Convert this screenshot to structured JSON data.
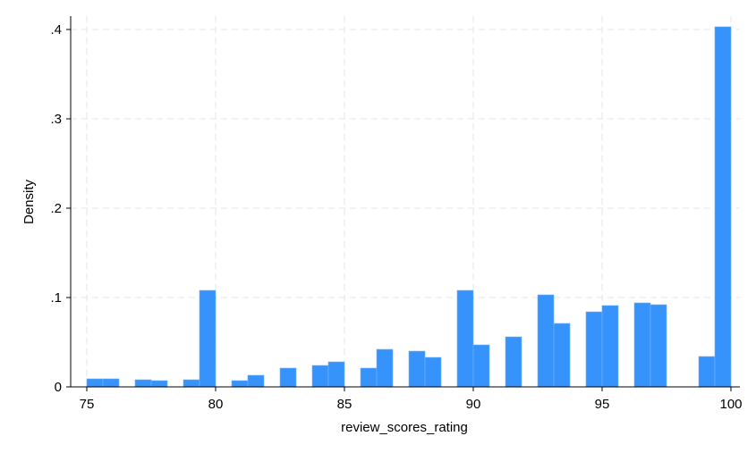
{
  "chart_data": {
    "type": "bar",
    "xlabel": "review_scores_rating",
    "ylabel": "Density",
    "xlim": [
      75,
      100
    ],
    "ylim": [
      0,
      0.4
    ],
    "x_ticks": [
      75,
      80,
      85,
      90,
      95,
      100
    ],
    "x_tick_labels": [
      "75",
      "80",
      "85",
      "90",
      "95",
      "100"
    ],
    "y_ticks": [
      0,
      0.1,
      0.2,
      0.3,
      0.4
    ],
    "y_tick_labels": [
      "0",
      ".1",
      ".2",
      ".3",
      ".4"
    ],
    "grid": true,
    "bin_width": 0.625,
    "bars": [
      {
        "x": 75.0,
        "value": 0.009
      },
      {
        "x": 75.625,
        "value": 0.009
      },
      {
        "x": 76.875,
        "value": 0.008
      },
      {
        "x": 77.5,
        "value": 0.007
      },
      {
        "x": 78.75,
        "value": 0.008
      },
      {
        "x": 79.375,
        "value": 0.108
      },
      {
        "x": 80.625,
        "value": 0.007
      },
      {
        "x": 81.25,
        "value": 0.013
      },
      {
        "x": 82.5,
        "value": 0.021
      },
      {
        "x": 83.75,
        "value": 0.024
      },
      {
        "x": 84.375,
        "value": 0.028
      },
      {
        "x": 85.625,
        "value": 0.021
      },
      {
        "x": 86.25,
        "value": 0.042
      },
      {
        "x": 87.5,
        "value": 0.04
      },
      {
        "x": 88.125,
        "value": 0.033
      },
      {
        "x": 89.375,
        "value": 0.108
      },
      {
        "x": 90.0,
        "value": 0.047
      },
      {
        "x": 91.25,
        "value": 0.056
      },
      {
        "x": 92.5,
        "value": 0.103
      },
      {
        "x": 93.125,
        "value": 0.071
      },
      {
        "x": 94.375,
        "value": 0.084
      },
      {
        "x": 95.0,
        "value": 0.091
      },
      {
        "x": 96.25,
        "value": 0.094
      },
      {
        "x": 96.875,
        "value": 0.092
      },
      {
        "x": 98.75,
        "value": 0.034
      },
      {
        "x": 99.375,
        "value": 0.403
      }
    ],
    "colors": {
      "bar": "#3793fc",
      "bar_edge": "#6eb2ff",
      "grid": "#e6e6e6"
    }
  }
}
